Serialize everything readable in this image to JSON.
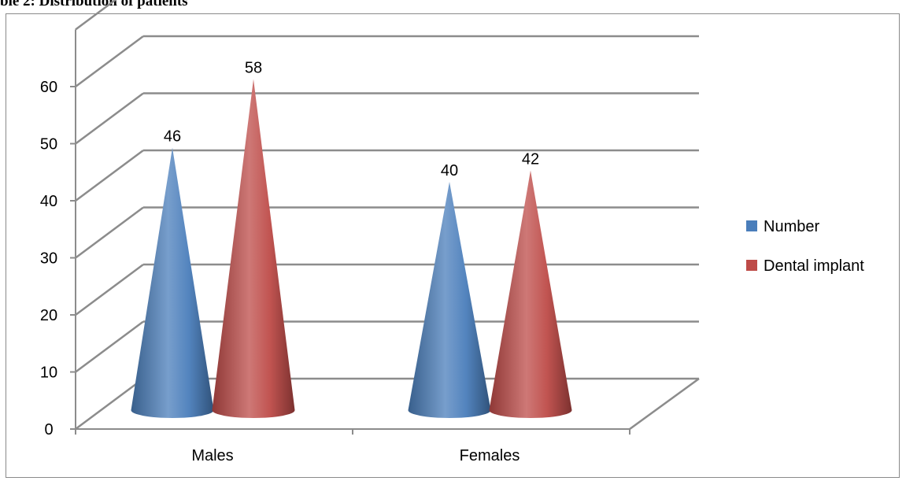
{
  "caption": "ble 2: Distribution of patients",
  "colors": {
    "number": "#4a7ebb",
    "dental_implant": "#be4b48",
    "grid": "#8c8c8c"
  },
  "chart_data": {
    "type": "bar",
    "bar_shape": "3d-cone",
    "categories": [
      "Males",
      "Females"
    ],
    "series": [
      {
        "name": "Number",
        "values": [
          46,
          40
        ],
        "color": "#4a7ebb"
      },
      {
        "name": "Dental implant",
        "values": [
          58,
          42
        ],
        "color": "#be4b48"
      }
    ],
    "ylim": [
      0,
      60
    ],
    "yticks": [
      "0",
      "10",
      "20",
      "30",
      "40",
      "50",
      "60"
    ],
    "data_labels": true,
    "grid": true,
    "legend": {
      "placement": "right"
    }
  }
}
